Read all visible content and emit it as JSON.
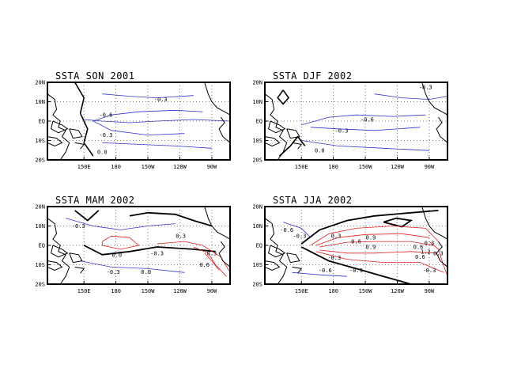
{
  "chart_data": [
    {
      "type": "contour",
      "title": "SSTA SON 2001",
      "x_ticks": [
        "150E",
        "180",
        "150W",
        "120W",
        "90W"
      ],
      "y_ticks": [
        "20N",
        "10N",
        "EQ",
        "10S",
        "20S"
      ],
      "xlim": [
        120,
        285
      ],
      "ylim": [
        -20,
        20
      ],
      "grid": true,
      "contour_labels": [
        "-0.3",
        "-0.6",
        "-0.3",
        "0.0"
      ],
      "colors": {
        "negative": "#3333cc",
        "positive": "#dd2222",
        "zero": "#000000"
      }
    },
    {
      "type": "contour",
      "title": "SSTA DJF 2002",
      "x_ticks": [
        "150E",
        "180",
        "150W",
        "120W",
        "90W"
      ],
      "y_ticks": [
        "20N",
        "10N",
        "EQ",
        "10S",
        "20S"
      ],
      "xlim": [
        120,
        285
      ],
      "ylim": [
        -20,
        20
      ],
      "grid": true,
      "contour_labels": [
        "-0.3",
        "-0.6",
        "-0.3",
        "0.0"
      ],
      "colors": {
        "negative": "#3333cc",
        "positive": "#dd2222",
        "zero": "#000000"
      }
    },
    {
      "type": "contour",
      "title": "SSTA MAM 2002",
      "x_ticks": [
        "150E",
        "180",
        "150W",
        "120W",
        "90W"
      ],
      "y_ticks": [
        "20N",
        "10N",
        "EQ",
        "10S",
        "20S"
      ],
      "xlim": [
        120,
        285
      ],
      "ylim": [
        -20,
        20
      ],
      "grid": true,
      "contour_labels": [
        "-0.3",
        "0.3",
        "0.0",
        "-0.3",
        "0.0",
        "0.3",
        "0.6",
        "-0.3"
      ],
      "colors": {
        "negative": "#3333cc",
        "positive": "#dd2222",
        "zero": "#000000"
      }
    },
    {
      "type": "contour",
      "title": "SSTA JJA 2002",
      "x_ticks": [
        "150E",
        "180",
        "150W",
        "120W",
        "90W"
      ],
      "y_ticks": [
        "20N",
        "10N",
        "EQ",
        "10S",
        "20S"
      ],
      "xlim": [
        120,
        285
      ],
      "ylim": [
        -20,
        20
      ],
      "grid": true,
      "contour_labels": [
        "-0.6",
        "-0.3",
        "0.3",
        "0.6",
        "0.9",
        "0.9",
        "0.3",
        "0.6",
        "1.2",
        "0.6",
        "0.3",
        "-0.3",
        "-0.6",
        "-0.3",
        "-0.3"
      ],
      "colors": {
        "negative": "#3333cc",
        "positive": "#dd2222",
        "zero": "#000000"
      }
    }
  ]
}
